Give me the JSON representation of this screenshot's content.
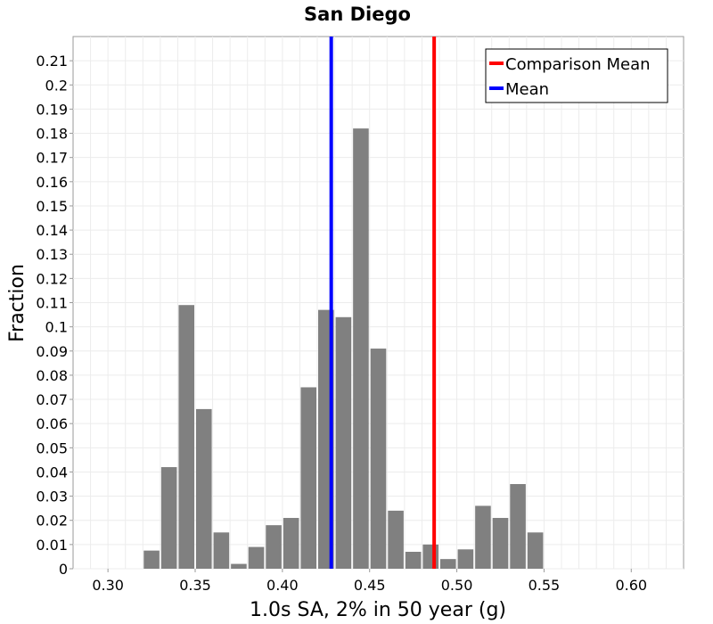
{
  "chart_data": {
    "type": "bar",
    "title": "San Diego",
    "xlabel": "1.0s SA, 2% in 50 year (g)",
    "ylabel": "Fraction",
    "xlim": [
      0.28,
      0.63
    ],
    "ylim": [
      0,
      0.22
    ],
    "x_ticks": [
      "0.30",
      "0.35",
      "0.40",
      "0.45",
      "0.50",
      "0.55",
      "0.60"
    ],
    "x_tick_values": [
      0.3,
      0.35,
      0.4,
      0.45,
      0.5,
      0.55,
      0.6
    ],
    "y_ticks": [
      "0",
      "0.01",
      "0.02",
      "0.03",
      "0.04",
      "0.05",
      "0.06",
      "0.07",
      "0.08",
      "0.09",
      "0.1",
      "0.11",
      "0.12",
      "0.13",
      "0.14",
      "0.15",
      "0.16",
      "0.17",
      "0.18",
      "0.19",
      "0.2",
      "0.21"
    ],
    "y_tick_values": [
      0,
      0.01,
      0.02,
      0.03,
      0.04,
      0.05,
      0.06,
      0.07,
      0.08,
      0.09,
      0.1,
      0.11,
      0.12,
      0.13,
      0.14,
      0.15,
      0.16,
      0.17,
      0.18,
      0.19,
      0.2,
      0.21
    ],
    "bin_width": 0.01,
    "bin_centers": [
      0.325,
      0.335,
      0.345,
      0.355,
      0.365,
      0.375,
      0.385,
      0.395,
      0.405,
      0.415,
      0.425,
      0.435,
      0.445,
      0.455,
      0.465,
      0.475,
      0.485,
      0.495,
      0.505,
      0.515,
      0.525,
      0.535,
      0.545
    ],
    "values": [
      0.0075,
      0.042,
      0.109,
      0.066,
      0.015,
      0.002,
      0.009,
      0.018,
      0.021,
      0.075,
      0.107,
      0.104,
      0.182,
      0.091,
      0.024,
      0.007,
      0.01,
      0.004,
      0.008,
      0.026,
      0.021,
      0.035,
      0.015
    ],
    "bar_color": "#808080",
    "lines": [
      {
        "name": "Comparison Mean",
        "x": 0.487,
        "color": "#ff0000"
      },
      {
        "name": "Mean",
        "x": 0.428,
        "color": "#0000ff"
      }
    ],
    "legend": {
      "position": "top-right",
      "entries": [
        {
          "label": "Comparison Mean",
          "color": "#ff0000"
        },
        {
          "label": "Mean",
          "color": "#0000ff"
        }
      ]
    },
    "grid": true
  }
}
